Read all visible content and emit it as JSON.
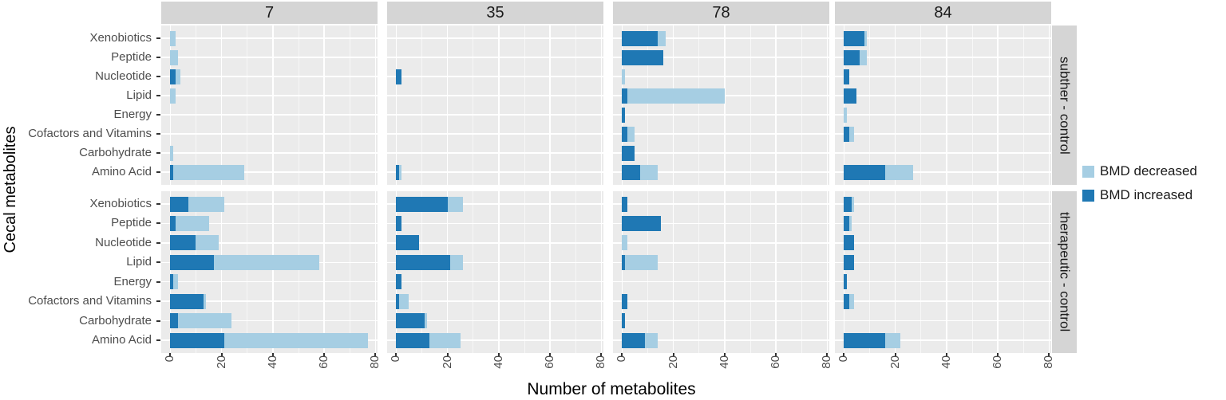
{
  "y_axis_title": "Cecal metabolites",
  "x_axis_title": "Number of metabolites",
  "legend": {
    "items": [
      {
        "label": "BMD decreased",
        "color": "#a6cee3"
      },
      {
        "label": "BMD increased",
        "color": "#1f78b4"
      }
    ]
  },
  "colors": {
    "bmd_decreased": "#a6cee3",
    "bmd_increased": "#1f78b4",
    "panel_background": "#ebebeb",
    "strip_background": "#d5d5d5",
    "axis_text": "#4d4d4d",
    "gridline": "#ffffff"
  },
  "chart_data": {
    "type": "bar",
    "orientation": "horizontal",
    "stacked": true,
    "title": "",
    "xlabel": "Number of metabolites",
    "ylabel": "Cecal metabolites",
    "grid": true,
    "legend_position": "right",
    "x_ticks": [
      0,
      20,
      40,
      60,
      80
    ],
    "xlim": [
      0,
      84
    ],
    "categories": [
      "Xenobiotics",
      "Peptide",
      "Nucleotide",
      "Lipid",
      "Energy",
      "Cofactors and Vitamins",
      "Carbohydrate",
      "Amino Acid"
    ],
    "facet_columns": [
      "7",
      "35",
      "78",
      "84"
    ],
    "facet_rows": [
      "subther - control",
      "therapeutic - control"
    ],
    "series": [
      {
        "name": "BMD increased",
        "key": "increased",
        "color": "#1f78b4"
      },
      {
        "name": "BMD decreased",
        "key": "decreased",
        "color": "#a6cee3"
      }
    ],
    "facets": [
      {
        "row": "subther - control",
        "col": "7",
        "increased": [
          0,
          0,
          2,
          0,
          0,
          0,
          0,
          1
        ],
        "decreased": [
          2,
          3,
          2,
          2,
          0,
          0,
          1,
          28
        ]
      },
      {
        "row": "subther - control",
        "col": "35",
        "increased": [
          0,
          0,
          2,
          0,
          0,
          0,
          0,
          1
        ],
        "decreased": [
          0,
          0,
          0,
          0,
          0,
          0,
          0,
          1
        ]
      },
      {
        "row": "subther - control",
        "col": "78",
        "increased": [
          14,
          16,
          0,
          2,
          1,
          2,
          5,
          7
        ],
        "decreased": [
          3,
          0,
          1,
          38,
          0,
          3,
          0,
          7
        ]
      },
      {
        "row": "subther - control",
        "col": "84",
        "increased": [
          8,
          6,
          2,
          5,
          0,
          2,
          0,
          16
        ],
        "decreased": [
          1,
          3,
          0,
          0,
          1,
          2,
          0,
          11
        ]
      },
      {
        "row": "therapeutic - control",
        "col": "7",
        "increased": [
          7,
          2,
          10,
          17,
          1,
          13,
          3,
          21
        ],
        "decreased": [
          14,
          13,
          9,
          41,
          2,
          1,
          21,
          56
        ]
      },
      {
        "row": "therapeutic - control",
        "col": "35",
        "increased": [
          20,
          2,
          9,
          21,
          2,
          1,
          11,
          13
        ],
        "decreased": [
          6,
          0,
          0,
          5,
          0,
          4,
          1,
          12
        ]
      },
      {
        "row": "therapeutic - control",
        "col": "78",
        "increased": [
          2,
          15,
          0,
          1,
          0,
          2,
          1,
          9
        ],
        "decreased": [
          0,
          0,
          2,
          13,
          0,
          0,
          0,
          5
        ]
      },
      {
        "row": "therapeutic - control",
        "col": "84",
        "increased": [
          3,
          2,
          4,
          4,
          1,
          2,
          0,
          16
        ],
        "decreased": [
          1,
          1,
          0,
          0,
          0,
          2,
          0,
          6
        ]
      }
    ]
  }
}
